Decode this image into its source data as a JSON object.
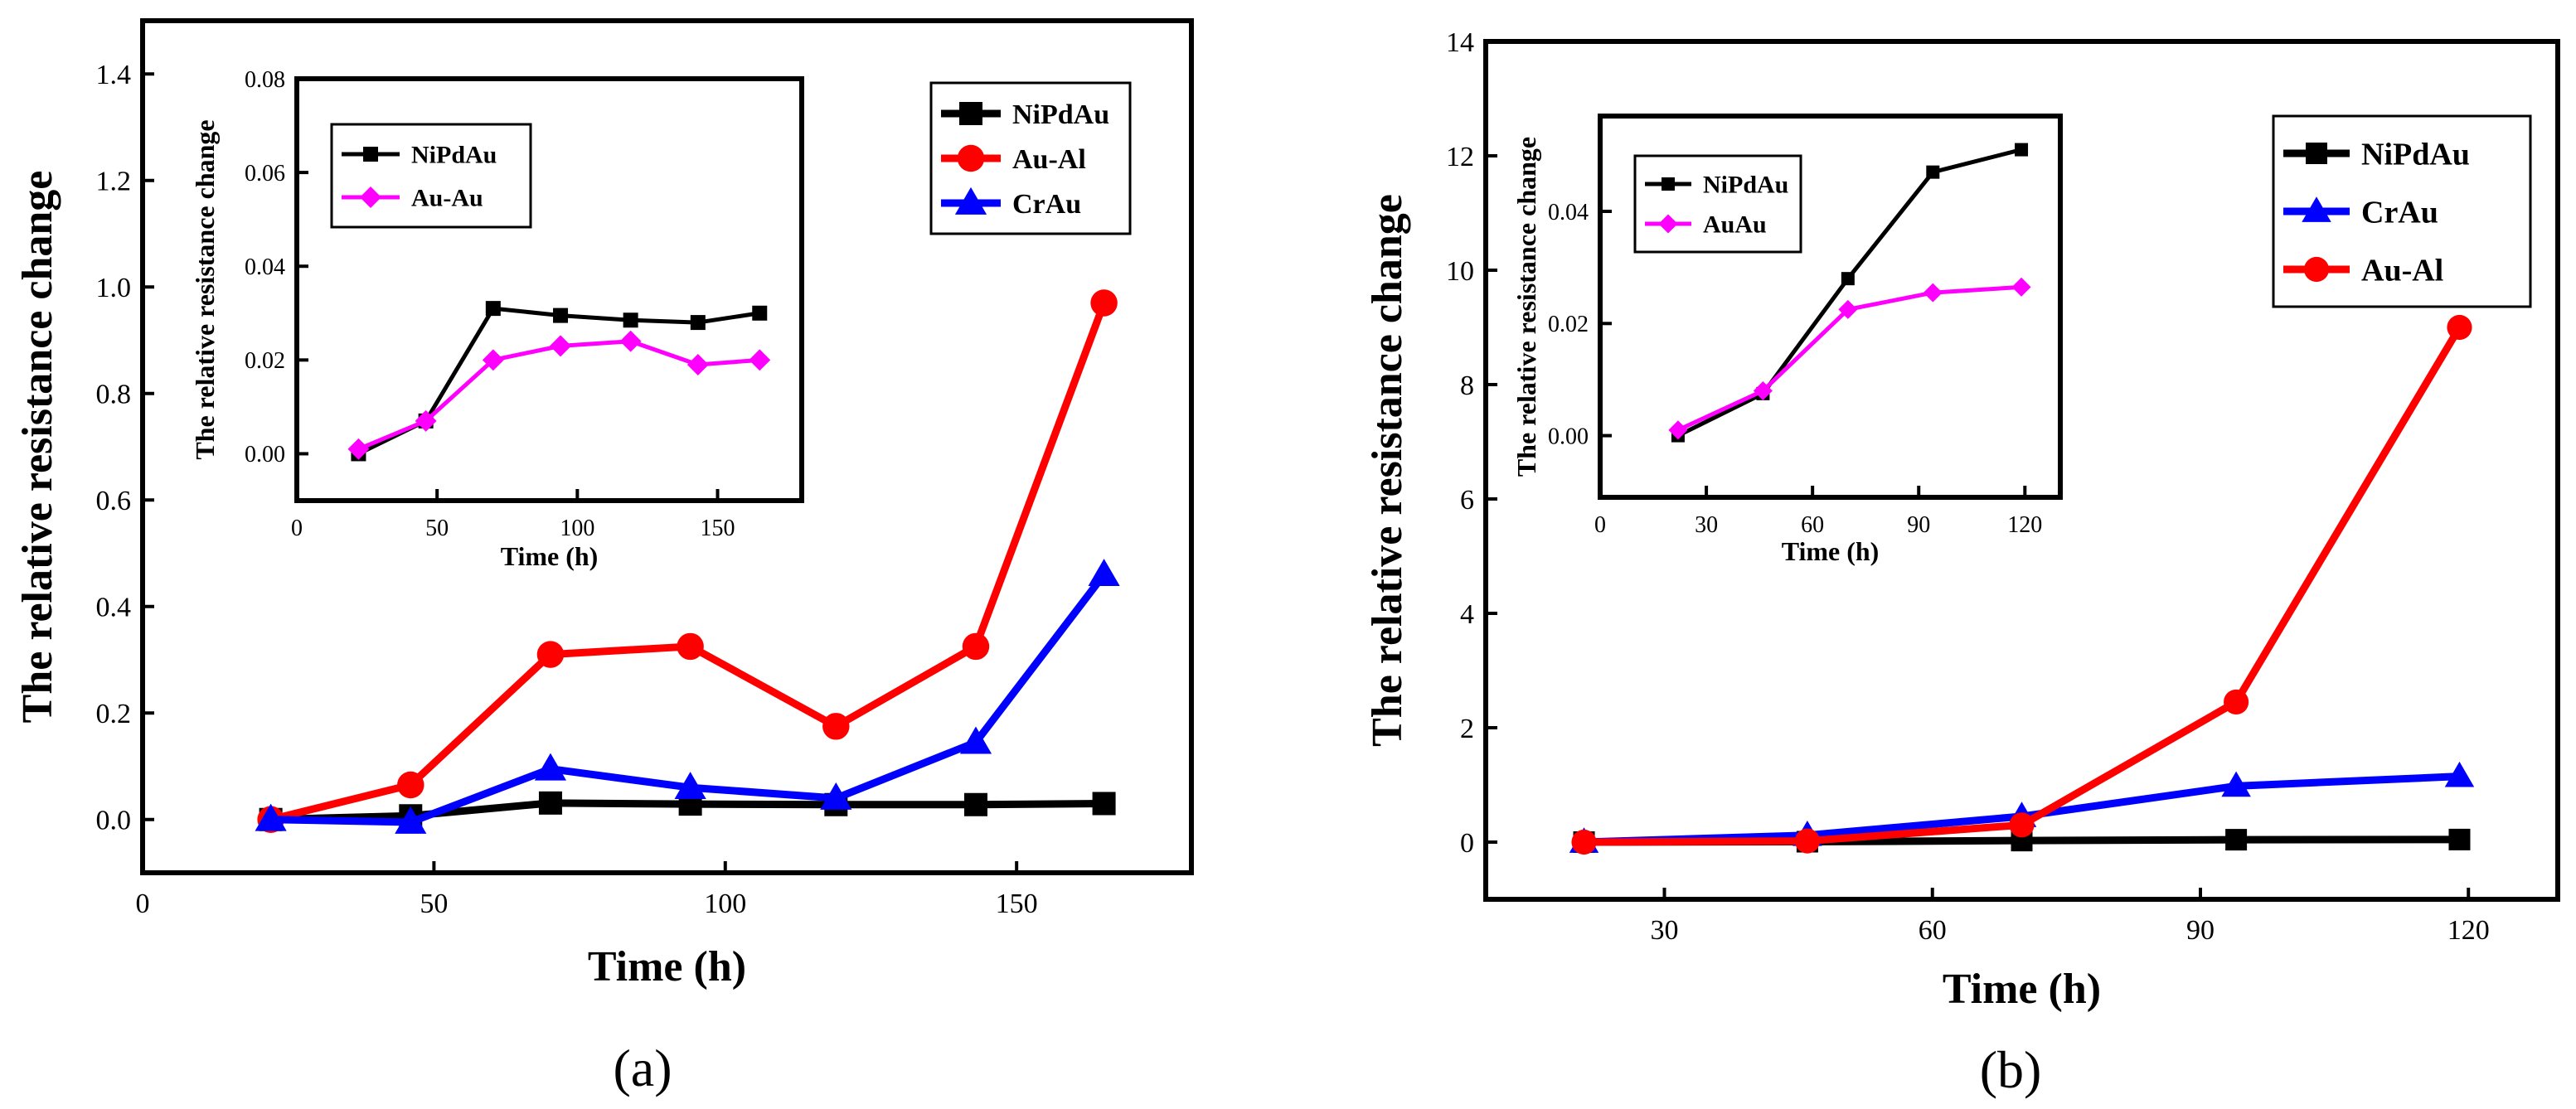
{
  "panels": [
    {
      "label": "(a)",
      "chart_data": {
        "type": "line",
        "title": "",
        "xlabel": "Time (h)",
        "ylabel": "The relative resistance change",
        "xlim": [
          0,
          180
        ],
        "ylim": [
          -0.1,
          1.5
        ],
        "xticks": [
          0,
          50,
          100,
          150
        ],
        "yticks": [
          0.0,
          0.2,
          0.4,
          0.6,
          0.8,
          1.0,
          1.2,
          1.4
        ],
        "ytick_decimals": 1,
        "grid": false,
        "legend_position": "top-right",
        "series": [
          {
            "name": "NiPdAu",
            "color": "#000000",
            "marker": "square",
            "x": [
              22,
              46,
              70,
              94,
              119,
              143,
              165
            ],
            "y": [
              0.0,
              0.007,
              0.031,
              0.029,
              0.028,
              0.028,
              0.03
            ]
          },
          {
            "name": "Au-Al",
            "color": "#ff0000",
            "marker": "circle",
            "x": [
              22,
              46,
              70,
              94,
              119,
              143,
              165
            ],
            "y": [
              0.0,
              0.065,
              0.31,
              0.325,
              0.175,
              0.325,
              0.97
            ]
          },
          {
            "name": "CrAu",
            "color": "#0000ff",
            "marker": "triangle",
            "x": [
              22,
              46,
              70,
              94,
              119,
              143,
              165
            ],
            "y": [
              0.0,
              -0.005,
              0.095,
              0.06,
              0.04,
              0.145,
              0.46
            ]
          }
        ]
      },
      "inset": {
        "chart_data": {
          "type": "line",
          "title": "",
          "xlabel": "Time (h)",
          "ylabel": "The relative resistance change",
          "xlim": [
            0,
            180
          ],
          "ylim": [
            -0.01,
            0.08
          ],
          "xticks": [
            0,
            50,
            100,
            150
          ],
          "yticks": [
            0.0,
            0.02,
            0.04,
            0.06,
            0.08
          ],
          "ytick_decimals": 2,
          "grid": false,
          "legend_position": "top-left",
          "series": [
            {
              "name": "NiPdAu",
              "color": "#000000",
              "marker": "square",
              "x": [
                22,
                46,
                70,
                94,
                119,
                143,
                165
              ],
              "y": [
                0.0,
                0.007,
                0.031,
                0.0295,
                0.0285,
                0.028,
                0.03
              ]
            },
            {
              "name": "Au-Au",
              "color": "#ff00ff",
              "marker": "diamond",
              "x": [
                22,
                46,
                70,
                94,
                119,
                143,
                165
              ],
              "y": [
                0.001,
                0.007,
                0.02,
                0.023,
                0.024,
                0.019,
                0.02
              ]
            }
          ]
        }
      }
    },
    {
      "label": "(b)",
      "chart_data": {
        "type": "line",
        "title": "",
        "xlabel": "Time (h)",
        "ylabel": "The relative resistance change",
        "xlim": [
          10,
          130
        ],
        "ylim": [
          -1,
          14
        ],
        "xticks": [
          30,
          60,
          90,
          120
        ],
        "yticks": [
          0,
          2,
          4,
          6,
          8,
          10,
          12,
          14
        ],
        "ytick_decimals": 0,
        "grid": false,
        "legend_position": "top-right",
        "series": [
          {
            "name": "NiPdAu",
            "color": "#000000",
            "marker": "square",
            "x": [
              21,
              46,
              70,
              94,
              119
            ],
            "y": [
              0.0,
              0.007,
              0.027,
              0.042,
              0.045
            ]
          },
          {
            "name": "CrAu",
            "color": "#0000ff",
            "marker": "triangle",
            "x": [
              21,
              46,
              70,
              94,
              119
            ],
            "y": [
              0.0,
              0.12,
              0.45,
              0.98,
              1.15
            ]
          },
          {
            "name": "Au-Al",
            "color": "#ff0000",
            "marker": "circle",
            "x": [
              21,
              46,
              70,
              94,
              119
            ],
            "y": [
              0.0,
              0.02,
              0.3,
              2.45,
              9.0
            ]
          }
        ]
      },
      "inset": {
        "chart_data": {
          "type": "line",
          "title": "",
          "xlabel": "Time (h)",
          "ylabel": "The relative resistance change",
          "xlim": [
            0,
            130
          ],
          "ylim": [
            -0.011,
            0.057
          ],
          "xticks": [
            0,
            30,
            60,
            90,
            120
          ],
          "yticks": [
            0.0,
            0.02,
            0.04
          ],
          "ytick_decimals": 2,
          "grid": false,
          "legend_position": "top-left",
          "series": [
            {
              "name": "NiPdAu",
              "color": "#000000",
              "marker": "square",
              "x": [
                22,
                46,
                70,
                94,
                119
              ],
              "y": [
                0.0,
                0.0075,
                0.028,
                0.047,
                0.051
              ]
            },
            {
              "name": "AuAu",
              "color": "#ff00ff",
              "marker": "diamond",
              "x": [
                22,
                46,
                70,
                94,
                119
              ],
              "y": [
                0.001,
                0.008,
                0.0225,
                0.0255,
                0.0265
              ]
            }
          ]
        }
      }
    }
  ]
}
